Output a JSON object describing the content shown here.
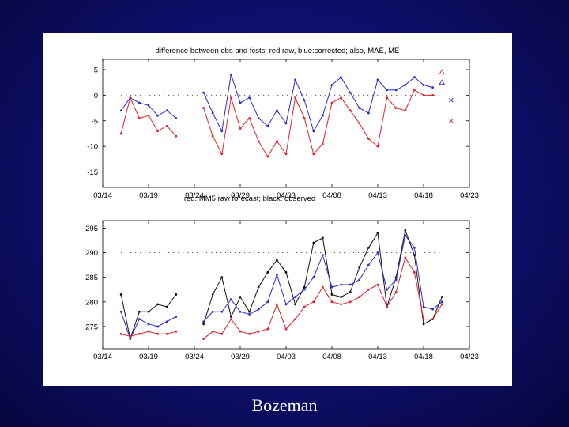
{
  "slide": {
    "caption": "Bozeman"
  },
  "chart_data": [
    {
      "type": "line",
      "title": "difference between obs and fcsts: red:raw, blue:corrected; also, MAE, ME",
      "xlabel": "",
      "ylabel": "",
      "x_ticks": [
        "03/14",
        "03/19",
        "03/24",
        "03/29",
        "04/03",
        "04/08",
        "04/13",
        "04/18",
        "04/23"
      ],
      "x_range_days": [
        0,
        40
      ],
      "y_ticks": [
        5,
        0,
        -5,
        -10,
        -15
      ],
      "ylim": [
        -18,
        7
      ],
      "reference_line": 0,
      "grid": false,
      "series": [
        {
          "name": "blue:corrected",
          "color": "#2a2ad0",
          "segments": [
            [
              [
                2,
                -3
              ],
              [
                3,
                -0.5
              ],
              [
                4,
                -1.5
              ],
              [
                5,
                -2
              ],
              [
                6,
                -4
              ],
              [
                7,
                -3
              ],
              [
                8,
                -4.5
              ]
            ],
            [
              [
                11,
                0.5
              ],
              [
                12,
                -3.5
              ],
              [
                13,
                -7
              ],
              [
                14,
                4
              ],
              [
                15,
                -1.5
              ],
              [
                16,
                -0.5
              ],
              [
                17,
                -4.5
              ],
              [
                18,
                -6
              ],
              [
                19,
                -3
              ],
              [
                20,
                -5.5
              ],
              [
                21,
                3
              ],
              [
                22,
                -1
              ],
              [
                23,
                -7
              ],
              [
                24,
                -4
              ],
              [
                25,
                2
              ],
              [
                26,
                3.5
              ],
              [
                27,
                0.5
              ],
              [
                28,
                -2.5
              ],
              [
                29,
                -3.5
              ],
              [
                30,
                3
              ],
              [
                31,
                1
              ],
              [
                32,
                1
              ],
              [
                33,
                2
              ],
              [
                34,
                3.5
              ],
              [
                35,
                2
              ],
              [
                36,
                1.5
              ]
            ]
          ]
        },
        {
          "name": "red:raw",
          "color": "#e0202a",
          "segments": [
            [
              [
                2,
                -7.5
              ],
              [
                3,
                -0.5
              ],
              [
                4,
                -4.5
              ],
              [
                5,
                -4
              ],
              [
                6,
                -7
              ],
              [
                7,
                -6
              ],
              [
                8,
                -8
              ]
            ],
            [
              [
                11,
                -2.5
              ],
              [
                12,
                -8
              ],
              [
                13,
                -11.5
              ],
              [
                14,
                -0.5
              ],
              [
                15,
                -6.5
              ],
              [
                16,
                -4.5
              ],
              [
                17,
                -9
              ],
              [
                18,
                -12
              ],
              [
                19,
                -9
              ],
              [
                20,
                -11.5
              ],
              [
                21,
                -0.5
              ],
              [
                22,
                -4.5
              ],
              [
                23,
                -11.5
              ],
              [
                24,
                -9.5
              ],
              [
                25,
                -1.5
              ],
              [
                26,
                -0.5
              ],
              [
                27,
                -3
              ],
              [
                28,
                -5.5
              ],
              [
                29,
                -8.5
              ],
              [
                30,
                -10
              ],
              [
                31,
                -0.5
              ],
              [
                32,
                -2.5
              ],
              [
                33,
                -3
              ],
              [
                34,
                1
              ],
              [
                35,
                0
              ],
              [
                36,
                0
              ]
            ]
          ]
        }
      ],
      "summary_markers": [
        {
          "label": "MAE raw",
          "symbol": "triangle",
          "color": "#e0202a",
          "x": 37,
          "y": 4.5
        },
        {
          "label": "MAE corrected",
          "symbol": "triangle",
          "color": "#2a2ad0",
          "x": 37,
          "y": 2.5
        },
        {
          "label": "ME corrected",
          "symbol": "cross",
          "color": "#2a2ad0",
          "x": 38,
          "y": -1
        },
        {
          "label": "ME raw",
          "symbol": "cross",
          "color": "#e0202a",
          "x": 38,
          "y": -5
        }
      ]
    },
    {
      "type": "line",
      "title": "red: MM5 raw forecast; black: observed",
      "xlabel": "",
      "ylabel": "",
      "x_ticks": [
        "03/14",
        "03/19",
        "03/24",
        "03/29",
        "04/03",
        "04/08",
        "04/13",
        "04/18",
        "04/23"
      ],
      "x_range_days": [
        0,
        40
      ],
      "y_ticks": [
        295,
        290,
        285,
        280,
        275
      ],
      "ylim": [
        270.5,
        296.5
      ],
      "reference_line": 290,
      "grid": false,
      "series": [
        {
          "name": "observed",
          "color": "#111111",
          "segments": [
            [
              [
                2,
                281.5
              ],
              [
                3,
                272.5
              ],
              [
                4,
                278
              ],
              [
                5,
                278
              ],
              [
                6,
                279.5
              ],
              [
                7,
                279
              ],
              [
                8,
                281.5
              ]
            ],
            [
              [
                11,
                275.5
              ],
              [
                12,
                281.5
              ],
              [
                13,
                285
              ],
              [
                14,
                277
              ],
              [
                15,
                281
              ],
              [
                16,
                278
              ],
              [
                17,
                283
              ],
              [
                18,
                286
              ],
              [
                19,
                288.5
              ],
              [
                20,
                286
              ],
              [
                21,
                279.5
              ],
              [
                22,
                283
              ],
              [
                23,
                292
              ],
              [
                24,
                293
              ],
              [
                25,
                281.5
              ],
              [
                26,
                281
              ],
              [
                27,
                282
              ],
              [
                28,
                287
              ],
              [
                29,
                291
              ],
              [
                30,
                294
              ],
              [
                31,
                279
              ],
              [
                32,
                285
              ],
              [
                33,
                294.5
              ],
              [
                34,
                289.5
              ],
              [
                35,
                275.5
              ],
              [
                36,
                276.5
              ],
              [
                37,
                281
              ]
            ]
          ]
        },
        {
          "name": "corrected",
          "color": "#2a2ad0",
          "segments": [
            [
              [
                2,
                278
              ],
              [
                3,
                272.5
              ],
              [
                4,
                276.5
              ],
              [
                5,
                275.5
              ],
              [
                6,
                275
              ],
              [
                7,
                276
              ],
              [
                8,
                277
              ]
            ],
            [
              [
                11,
                276
              ],
              [
                12,
                278
              ],
              [
                13,
                278
              ],
              [
                14,
                280.5
              ],
              [
                15,
                278
              ],
              [
                16,
                277.5
              ],
              [
                17,
                278.5
              ],
              [
                18,
                280
              ],
              [
                19,
                285.5
              ],
              [
                20,
                279.5
              ],
              [
                21,
                281
              ],
              [
                22,
                282.5
              ],
              [
                23,
                285
              ],
              [
                24,
                289.5
              ],
              [
                25,
                283
              ],
              [
                26,
                283.5
              ],
              [
                27,
                283.5
              ],
              [
                28,
                284.5
              ],
              [
                29,
                287.5
              ],
              [
                30,
                290
              ],
              [
                31,
                282.5
              ],
              [
                32,
                284.5
              ],
              [
                33,
                293.5
              ],
              [
                34,
                291
              ],
              [
                35,
                279
              ],
              [
                36,
                278.5
              ],
              [
                37,
                280
              ]
            ]
          ]
        },
        {
          "name": "MM5 raw forecast",
          "color": "#e0202a",
          "segments": [
            [
              [
                2,
                273.5
              ],
              [
                3,
                273
              ],
              [
                4,
                273.5
              ],
              [
                5,
                274
              ],
              [
                6,
                273.5
              ],
              [
                7,
                273.5
              ],
              [
                8,
                274
              ]
            ],
            [
              [
                11,
                272.5
              ],
              [
                12,
                274
              ],
              [
                13,
                273.5
              ],
              [
                14,
                276.5
              ],
              [
                15,
                274
              ],
              [
                16,
                273.5
              ],
              [
                17,
                274
              ],
              [
                18,
                274.5
              ],
              [
                19,
                279.5
              ],
              [
                20,
                274.5
              ],
              [
                21,
                276.5
              ],
              [
                22,
                279
              ],
              [
                23,
                280
              ],
              [
                24,
                283
              ],
              [
                25,
                280
              ],
              [
                26,
                279.5
              ],
              [
                27,
                280
              ],
              [
                28,
                281
              ],
              [
                29,
                282.5
              ],
              [
                30,
                283.5
              ],
              [
                31,
                279
              ],
              [
                32,
                282
              ],
              [
                33,
                289
              ],
              [
                34,
                286
              ],
              [
                35,
                276.5
              ],
              [
                36,
                276.5
              ],
              [
                37,
                279.5
              ]
            ]
          ]
        }
      ]
    }
  ]
}
